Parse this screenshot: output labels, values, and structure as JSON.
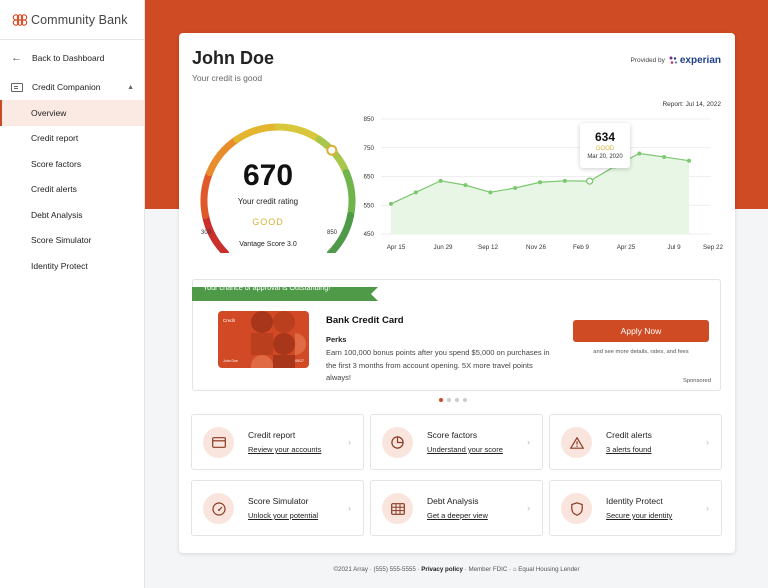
{
  "brand": {
    "name": "Community Bank"
  },
  "sidebar": {
    "back_label": "Back to Dashboard",
    "group_label": "Credit Companion",
    "items": [
      {
        "label": "Overview",
        "active": true
      },
      {
        "label": "Credit report"
      },
      {
        "label": "Score factors"
      },
      {
        "label": "Credit alerts"
      },
      {
        "label": "Debt Analysis"
      },
      {
        "label": "Score Simulator"
      },
      {
        "label": "Identity Protect"
      }
    ]
  },
  "header": {
    "name": "John Doe",
    "subtitle": "Your credit is good",
    "provided_by": "Provided by",
    "provider": "experian",
    "report_date": "Report: Jul 14, 2022"
  },
  "gauge": {
    "score": "670",
    "label": "Your credit rating",
    "rating": "GOOD",
    "min": "300",
    "max": "850",
    "model": "Vantage Score 3.0",
    "score_value": 670,
    "min_value": 300,
    "max_value": 850
  },
  "chart_data": {
    "type": "area",
    "title": "",
    "xlabel": "",
    "ylabel": "",
    "ylim": [
      450,
      850
    ],
    "y_ticks": [
      "850",
      "750",
      "650",
      "550",
      "450"
    ],
    "x_ticks": [
      "Apr 15",
      "Jun 29",
      "Sep 12",
      "Nov 26",
      "Feb 9",
      "Apr 25",
      "Jul 9",
      "Sep 22"
    ],
    "series": [
      {
        "values": [
          555,
          595,
          635,
          620,
          595,
          610,
          630,
          635,
          634,
          685,
          730,
          718,
          705
        ]
      }
    ],
    "highlight": {
      "index": 8,
      "value": "634",
      "rating": "GOOD",
      "date": "Mar 20, 2020"
    },
    "color": "#7bc86f",
    "fill": "#e8f6e5",
    "grid": true
  },
  "offer": {
    "ribbon": "Your chance of approval is Outstanding!",
    "card_label": "Credit",
    "card_holder": "John Doe",
    "card_exp": "09/27",
    "title": "Bank Credit Card",
    "perks_label": "Perks",
    "description": "Earn 100,000 bonus points after you spend $5,000 on purchases in the first 3 months from account opening. 5X more travel points always!",
    "apply_label": "Apply Now",
    "apply_sub": "and see more details, rates, and fees",
    "sponsored": "Sponsored"
  },
  "tiles": [
    {
      "title": "Credit report",
      "link": "Review your accounts",
      "icon": "credit-card-icon"
    },
    {
      "title": "Score factors",
      "link": "Understand your score",
      "icon": "pie-chart-icon"
    },
    {
      "title": "Credit alerts",
      "link": "3 alerts found",
      "icon": "warning-icon"
    },
    {
      "title": "Score Simulator",
      "link": "Unlock your potential",
      "icon": "speedometer-icon"
    },
    {
      "title": "Debt Analysis",
      "link": "Get a deeper view",
      "icon": "calculator-icon"
    },
    {
      "title": "Identity Protect",
      "link": "Secure your identity",
      "icon": "shield-icon"
    }
  ],
  "footer": {
    "copyright": "©2021 Array",
    "phone": "(555) 555-5555",
    "privacy": "Privacy policy",
    "fdic": "Member FDIC",
    "lender": "Equal Housing Lender"
  },
  "colors": {
    "brand": "#cf4b23",
    "good": "#d8b23a",
    "ribbon": "#4e9a48"
  }
}
